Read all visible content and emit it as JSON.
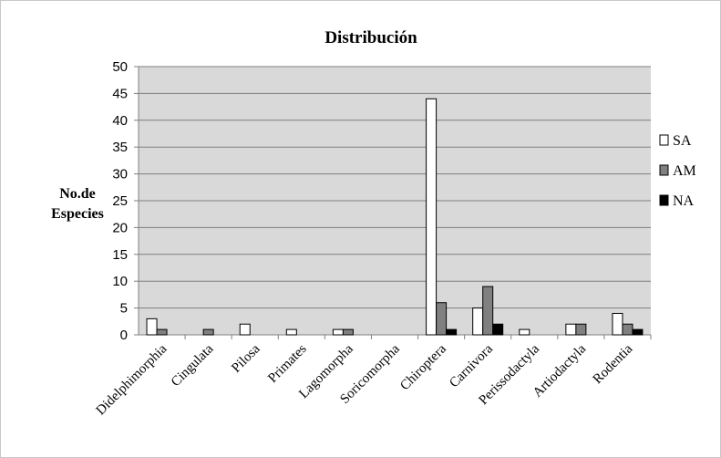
{
  "chart_data": {
    "type": "bar",
    "title": "Distribución",
    "ylabel_lines": [
      "No.de",
      "Especies"
    ],
    "xlabel": "",
    "ylim": [
      0,
      50
    ],
    "yticks": [
      0,
      5,
      10,
      15,
      20,
      25,
      30,
      35,
      40,
      45,
      50
    ],
    "grid": true,
    "legend_position": "right",
    "categories": [
      "Didelphimorphia",
      "Cingulata",
      "Pilosa",
      "Primates",
      "Lagomorpha",
      "Soricomorpha",
      "Chiroptera",
      "Carnivora",
      "Perissodactyla",
      "Artiodactyla",
      "Rodentia"
    ],
    "series": [
      {
        "name": "SA",
        "color": "#ffffff",
        "values": [
          3,
          0,
          2,
          1,
          1,
          0,
          44,
          5,
          1,
          2,
          4
        ]
      },
      {
        "name": "AM",
        "color": "#808080",
        "values": [
          1,
          1,
          0,
          0,
          1,
          0,
          6,
          9,
          0,
          2,
          2
        ]
      },
      {
        "name": "NA",
        "color": "#000000",
        "values": [
          0,
          0,
          0,
          0,
          0,
          0,
          1,
          2,
          0,
          0,
          1
        ]
      }
    ],
    "plot_background": "#d9d9d9"
  }
}
